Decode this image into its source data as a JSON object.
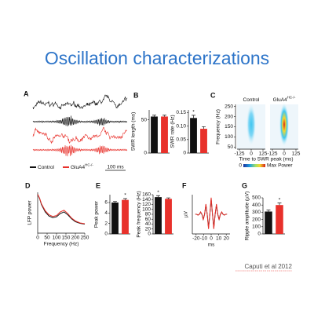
{
  "title": "Oscillation characterizations",
  "citation": "Caputi et al 2012",
  "chart_data": [
    {
      "type": "traces",
      "panel": "A",
      "series": [
        {
          "name": "Control",
          "color": "#111111"
        },
        {
          "name": "GluA4",
          "name_sup": "HC-/-",
          "color": "#e8312b"
        }
      ],
      "scalebar": "100 ms"
    },
    {
      "type": "bar",
      "panel": "B",
      "ylabel": "SWR length (ms)",
      "values": [
        55,
        55
      ],
      "errors": [
        2,
        2
      ],
      "colors": [
        "#111111",
        "#e8312b"
      ],
      "ylim": [
        0,
        65
      ],
      "yticks": [
        0,
        50
      ]
    },
    {
      "type": "bar",
      "ylabel": "SWR rate (Hz)",
      "values": [
        0.13,
        0.09
      ],
      "errors": [
        0.01,
        0.008
      ],
      "colors": [
        "#111111",
        "#e8312b"
      ],
      "ylim": [
        0,
        0.16
      ],
      "yticks": [
        0,
        0.05,
        {
          "value": 0.1,
          "label": "0.10"
        },
        0.15
      ],
      "annotation": "*"
    },
    {
      "type": "heatmap",
      "panel": "C",
      "titles": [
        {
          "text": "Control"
        },
        {
          "text": "GluA4",
          "sup": "HC-/-"
        }
      ],
      "ylabel": "Frequency (Hz)",
      "xlabel": "Time to SWR peak (ms)",
      "ylim": [
        40,
        260
      ],
      "yticks": [
        50,
        100,
        150,
        200,
        250
      ],
      "xlim": [
        -150,
        150
      ],
      "xticks": [
        -125,
        0,
        125
      ],
      "colorbar": [
        "0",
        "Max Power"
      ]
    },
    {
      "type": "line",
      "panel": "D",
      "ylabel": "LFP power",
      "xlabel": "Frequency (Hz)",
      "x": [
        0,
        10,
        20,
        40,
        60,
        80,
        100,
        120,
        140,
        160,
        180,
        200,
        225,
        250
      ],
      "series": [
        {
          "color": "#111111",
          "values": [
            0.95,
            0.85,
            0.7,
            0.52,
            0.42,
            0.38,
            0.4,
            0.48,
            0.52,
            0.45,
            0.35,
            0.28,
            0.24,
            0.22
          ]
        },
        {
          "color": "#e8312b",
          "values": [
            0.95,
            0.86,
            0.72,
            0.55,
            0.45,
            0.41,
            0.43,
            0.52,
            0.56,
            0.48,
            0.37,
            0.3,
            0.25,
            0.23
          ]
        }
      ],
      "xlim": [
        0,
        250
      ],
      "xticks": [
        0,
        50,
        100,
        150,
        200,
        250
      ],
      "ylim": [
        0,
        1
      ]
    },
    {
      "type": "bar",
      "panel": "E",
      "ylabel": "Peak power",
      "values": [
        6.0,
        6.5
      ],
      "errors": [
        0.2,
        0.25
      ],
      "colors": [
        "#111111",
        "#e8312b"
      ],
      "ylim": [
        0,
        7.5
      ],
      "yticks": [
        0,
        2,
        4,
        6
      ],
      "annotation": "*"
    },
    {
      "type": "bar",
      "ylabel": "Peak frequency (Hz)",
      "values": [
        150,
        143
      ],
      "errors": [
        6,
        4
      ],
      "colors": [
        "#111111",
        "#e8312b"
      ],
      "ylim": [
        0,
        160
      ],
      "yticks": [
        0,
        20,
        40,
        60,
        80,
        100,
        120,
        140,
        160
      ],
      "annotation": "*"
    },
    {
      "type": "line",
      "panel": "F",
      "ylabel": "µV",
      "xlabel": "ms",
      "x": [
        -21,
        -19.25,
        -17.5,
        -15.75,
        -14,
        -12.25,
        -10.5,
        -8.75,
        -7,
        -5.25,
        -3.5,
        -1.75,
        0,
        1.75,
        3.5,
        5.25,
        7,
        8.75,
        10.5,
        12.25,
        14,
        15.75,
        17.5,
        19.25,
        21
      ],
      "series": [
        {
          "color": "#111111",
          "values": [
            0.01,
            0,
            -0.05,
            0,
            0.14,
            0,
            -0.33,
            0,
            0.61,
            0,
            -0.88,
            0,
            1,
            0,
            -0.88,
            0,
            0.61,
            0,
            -0.33,
            0,
            0.14,
            0,
            -0.05,
            0,
            0.01
          ]
        },
        {
          "color": "#e8312b",
          "values": [
            0.01,
            0,
            -0.06,
            0,
            0.16,
            0,
            -0.37,
            0,
            0.68,
            0,
            -0.97,
            0,
            1.1,
            0,
            -0.97,
            0,
            0.68,
            0,
            -0.37,
            0,
            0.16,
            0,
            -0.06,
            0,
            0.01
          ]
        }
      ],
      "xlim": [
        -25,
        25
      ],
      "xticks": [
        -20,
        -10,
        0,
        10,
        20
      ],
      "ylim": [
        -1.3,
        1.3
      ]
    },
    {
      "type": "bar",
      "panel": "G",
      "ylabel": "Ripple amplitude (µV)",
      "values": [
        310,
        400
      ],
      "errors": [
        20,
        28
      ],
      "colors": [
        "#111111",
        "#e8312b"
      ],
      "ylim": [
        0,
        500
      ],
      "yticks": [
        0,
        100,
        200,
        300,
        400,
        500
      ],
      "annotation": "*"
    }
  ]
}
